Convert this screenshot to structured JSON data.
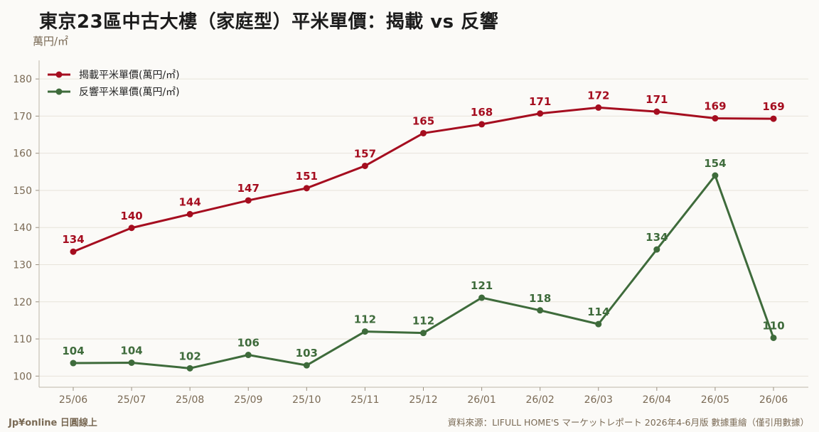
{
  "chart_data": {
    "type": "line",
    "title": "東京23區中古大樓（家庭型）平米單價：揭載 vs 反響",
    "ylabel": "萬円/㎡",
    "xlabel": "",
    "categories": [
      "25/06",
      "25/07",
      "25/08",
      "25/09",
      "25/10",
      "25/11",
      "25/12",
      "26/01",
      "26/02",
      "26/03",
      "26/04",
      "26/05",
      "26/06"
    ],
    "ylim": [
      97,
      185
    ],
    "yticks": [
      100,
      110,
      120,
      130,
      140,
      150,
      160,
      170,
      180
    ],
    "grid": true,
    "legend": "top-left",
    "series": [
      {
        "name": "揭載平米單價(萬円/㎡)",
        "color": "#a50d1f",
        "values": [
          133.5,
          139.9,
          143.6,
          147.3,
          150.6,
          156.6,
          165.4,
          167.8,
          170.7,
          172.3,
          171.2,
          169.4,
          169.3
        ],
        "labels": [
          "134",
          "140",
          "144",
          "147",
          "151",
          "157",
          "165",
          "168",
          "171",
          "172",
          "171",
          "169",
          "169"
        ]
      },
      {
        "name": "反響平米單價(萬円/㎡)",
        "color": "#3e6b3b",
        "values": [
          103.5,
          103.6,
          102.1,
          105.7,
          102.9,
          112.0,
          111.6,
          121.1,
          117.7,
          114.0,
          134.1,
          154.0,
          110.3
        ],
        "labels": [
          "104",
          "104",
          "102",
          "106",
          "103",
          "112",
          "112",
          "121",
          "118",
          "114",
          "134",
          "154",
          "110"
        ]
      }
    ]
  },
  "footer": {
    "brand": "Jp¥online 日圓線上",
    "source": "資料來源：LIFULL HOME'S マーケットレポート 2026年4-6月版 數據重繪（僅引用數據）"
  }
}
